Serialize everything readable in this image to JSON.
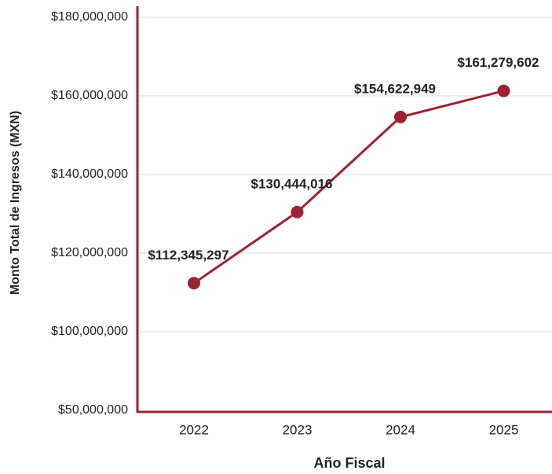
{
  "chart_data": {
    "type": "line",
    "x_label": "Año Fiscal",
    "y_label": "Monto Total de Ingresos (MXN)",
    "categories": [
      "2022",
      "2023",
      "2024",
      "2025"
    ],
    "series": [
      {
        "color": "#9b2335",
        "values": [
          112345297,
          130444016,
          154622949,
          161279602
        ],
        "value_labels": [
          "$112,345,297",
          "$130,444,016",
          "$154,622,949",
          "$161,279,602"
        ]
      }
    ],
    "ylim": [
      50000000,
      180000000
    ],
    "yticks": [
      {
        "value": 50000000,
        "label": "$50,000,000"
      },
      {
        "value": 100000000,
        "label": "$100,000,000"
      },
      {
        "value": 120000000,
        "label": "$120,000,000"
      },
      {
        "value": 140000000,
        "label": "$140,000,000"
      },
      {
        "value": 160000000,
        "label": "$160,000,000"
      },
      {
        "value": 180000000,
        "label": "$180,000,000"
      }
    ],
    "grid": true
  }
}
